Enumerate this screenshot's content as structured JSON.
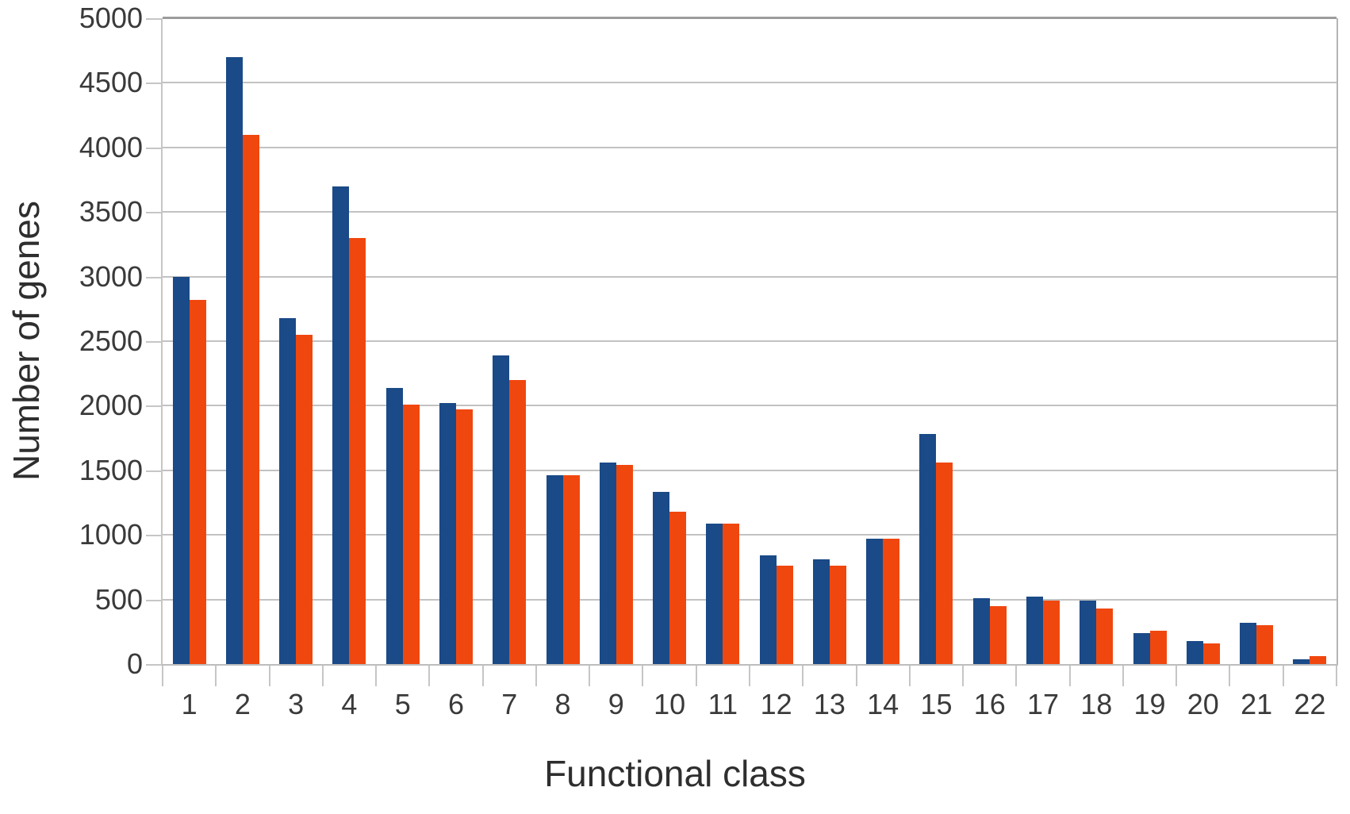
{
  "chart_data": {
    "type": "bar",
    "title": "",
    "xlabel": "Functional class",
    "ylabel": "Number of genes",
    "categories": [
      "1",
      "2",
      "3",
      "4",
      "5",
      "6",
      "7",
      "8",
      "9",
      "10",
      "11",
      "12",
      "13",
      "14",
      "15",
      "16",
      "17",
      "18",
      "19",
      "20",
      "21",
      "22"
    ],
    "series": [
      {
        "name": "blue-series",
        "color": "#1a4a87",
        "values": [
          3000,
          4700,
          2680,
          3700,
          2140,
          2020,
          2390,
          1460,
          1560,
          1330,
          1090,
          840,
          810,
          970,
          1780,
          510,
          520,
          490,
          240,
          180,
          320,
          40
        ]
      },
      {
        "name": "orange-series",
        "color": "#f0470f",
        "values": [
          2820,
          4100,
          2550,
          3300,
          2010,
          1970,
          2200,
          1460,
          1540,
          1180,
          1090,
          760,
          760,
          970,
          1560,
          450,
          490,
          430,
          260,
          160,
          300,
          60
        ]
      }
    ],
    "ylim": [
      0,
      5000
    ],
    "yticks": [
      0,
      500,
      1000,
      1500,
      2000,
      2500,
      3000,
      3500,
      4000,
      4500,
      5000
    ],
    "grid": true,
    "legend_position": "none"
  },
  "colors": {
    "background": "#ffffff",
    "gridline": "#c2c2c2",
    "plot_top_border": "#9c9c9c",
    "axis_text": "#3a3a3a",
    "title_text": "#2e2e2e"
  }
}
